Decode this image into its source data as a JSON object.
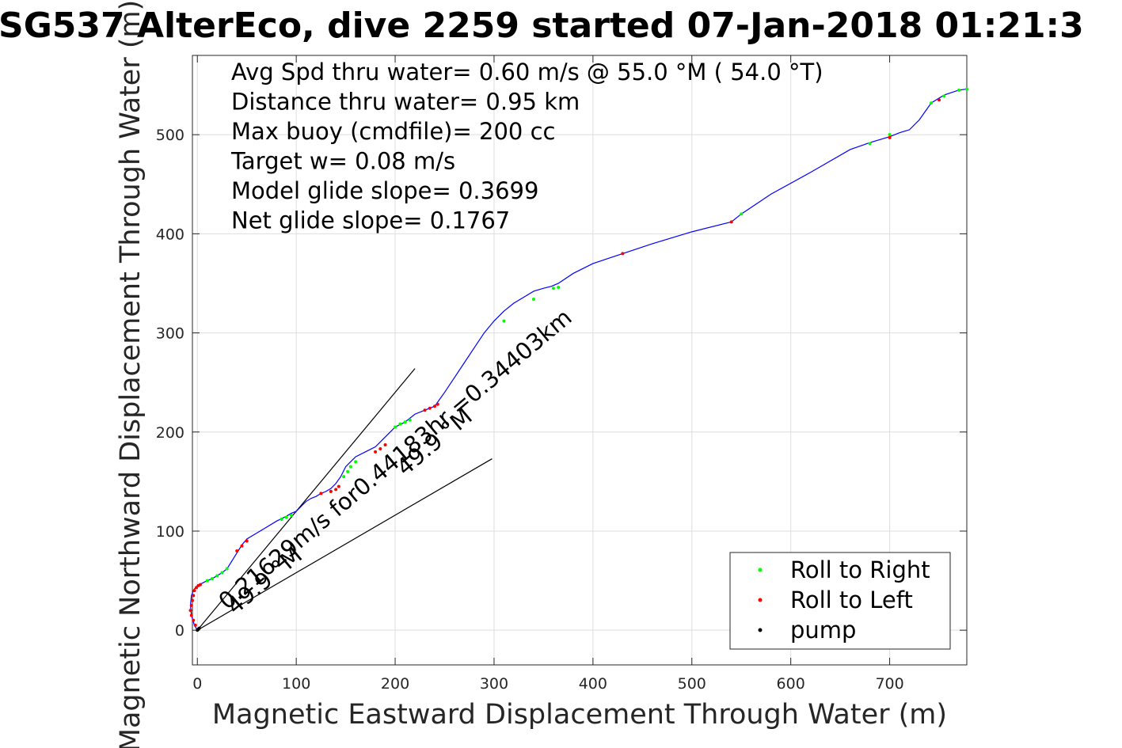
{
  "chart_data": {
    "type": "line",
    "title": "SG537 AlterEco, dive 2259 started 07-Jan-2018 01:21:3",
    "xlabel": "Magnetic Eastward Displacement Through Water (m)",
    "ylabel": "Magnetic Northward Displacement Through Water (m)",
    "xlim": [
      -5,
      778
    ],
    "ylim": [
      -35,
      580
    ],
    "xticks": [
      0,
      100,
      200,
      300,
      400,
      500,
      600,
      700
    ],
    "yticks": [
      0,
      100,
      200,
      300,
      400,
      500
    ],
    "grid": true,
    "legend_position": "bottom-right",
    "info_lines": [
      "Avg Spd thru water=  0.60 m/s @  55.0 °M ( 54.0 °T)",
      "Distance thru water=  0.95 km",
      "Max buoy (cmdfile)= 200 cc",
      "Target w= 0.08 m/s",
      "Model glide slope= 0.3699",
      "Net glide slope= 0.1767"
    ],
    "annotations": [
      {
        "text": "0.21629m/s for0.44183hr =0.34403km",
        "x": 30,
        "y": 20,
        "angle_deg": 40
      },
      {
        "text": "49.9 °M",
        "x": 38,
        "y": 15,
        "angle_deg": 40
      },
      {
        "text": "49.9 °M",
        "x": 210,
        "y": 155,
        "angle_deg": 40
      }
    ],
    "current_lines": [
      {
        "x": [
          0,
          220
        ],
        "y": [
          0,
          264
        ]
      },
      {
        "x": [
          0,
          298
        ],
        "y": [
          0,
          173
        ]
      }
    ],
    "series": [
      {
        "name": "Track",
        "color": "#0000ff",
        "x": [
          0,
          -3,
          -6,
          -7,
          -6,
          -4,
          -2,
          0,
          4,
          8,
          15,
          20,
          25,
          30,
          35,
          40,
          45,
          50,
          60,
          70,
          80,
          90,
          95,
          100,
          105,
          110,
          115,
          120,
          125,
          130,
          135,
          140,
          145,
          150,
          155,
          160,
          170,
          180,
          185,
          190,
          195,
          200,
          210,
          220,
          230,
          240,
          250,
          260,
          270,
          280,
          290,
          300,
          310,
          320,
          330,
          340,
          350,
          358,
          365,
          380,
          400,
          430,
          460,
          500,
          540,
          550,
          580,
          620,
          660,
          680,
          700,
          710,
          720,
          730,
          742,
          755,
          770,
          778
        ],
        "y": [
          0,
          5,
          15,
          25,
          35,
          40,
          43,
          45,
          47,
          49,
          52,
          55,
          58,
          62,
          70,
          78,
          86,
          92,
          98,
          104,
          110,
          115,
          118,
          120,
          125,
          130,
          133,
          135,
          138,
          140,
          143,
          148,
          155,
          165,
          170,
          175,
          180,
          185,
          190,
          195,
          200,
          205,
          210,
          218,
          222,
          226,
          240,
          255,
          270,
          285,
          300,
          312,
          322,
          330,
          336,
          342,
          345,
          347,
          350,
          360,
          370,
          380,
          390,
          402,
          412,
          420,
          440,
          462,
          485,
          492,
          498,
          502,
          505,
          515,
          532,
          540,
          545,
          546
        ]
      },
      {
        "name": "Roll to Right",
        "color": "#00ff00",
        "x": [
          10,
          15,
          20,
          25,
          30,
          85,
          90,
          95,
          135,
          148,
          152,
          155,
          160,
          200,
          205,
          210,
          215,
          310,
          340,
          360,
          365,
          550,
          680,
          700,
          742,
          755,
          770,
          778
        ],
        "y": [
          50,
          52,
          55,
          58,
          62,
          112,
          114,
          116,
          140,
          155,
          160,
          165,
          170,
          205,
          208,
          210,
          212,
          312,
          334,
          345,
          346,
          420,
          491,
          500,
          532,
          539,
          545,
          546
        ]
      },
      {
        "name": "Roll to Left",
        "color": "#ff0000",
        "x": [
          -2,
          -4,
          -6,
          -7,
          -6,
          -5,
          -4,
          -3,
          -1,
          1,
          3,
          40,
          45,
          50,
          125,
          135,
          140,
          143,
          180,
          185,
          190,
          230,
          235,
          240,
          243,
          430,
          540,
          700,
          750
        ],
        "y": [
          5,
          10,
          15,
          20,
          25,
          30,
          35,
          40,
          43,
          45,
          46,
          80,
          85,
          90,
          138,
          140,
          142,
          145,
          180,
          183,
          187,
          222,
          224,
          226,
          228,
          380,
          412,
          497,
          535
        ]
      },
      {
        "name": "pump",
        "color": "#000000",
        "x": [
          0,
          1,
          2
        ],
        "y": [
          0,
          1,
          2
        ]
      }
    ]
  }
}
